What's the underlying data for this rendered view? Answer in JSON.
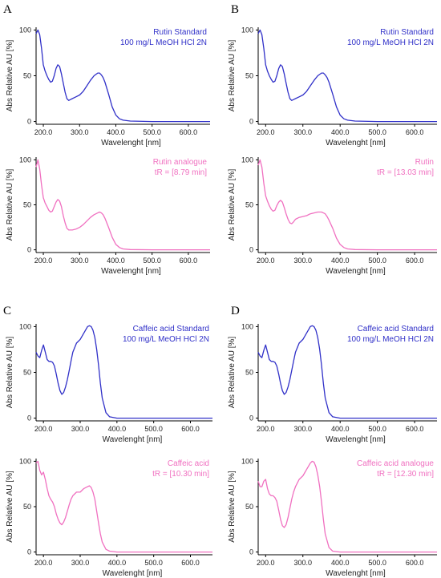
{
  "figure": {
    "panels": [
      "A",
      "B",
      "C",
      "D"
    ],
    "colors": {
      "standard": "#3030c8",
      "sample": "#f070c0",
      "axis": "#000000"
    }
  },
  "chart_data": [
    {
      "panel": "A",
      "type": "line",
      "legend": [
        "Rutin Standard",
        "100 mg/L MeOH HCl 2N"
      ],
      "xlabel": "Wavelenght [nm]",
      "ylabel": "Abs Relative AU [%]",
      "xlim": [
        180,
        660
      ],
      "ylim": [
        -3,
        103
      ],
      "xticks": [
        "200.0",
        "300.0",
        "400.0",
        "500.0",
        "600.0"
      ],
      "yticks": [
        "0",
        "50",
        "100"
      ],
      "grid": false,
      "series": [
        {
          "x": [
            180,
            185,
            190,
            195,
            200,
            205,
            210,
            215,
            220,
            225,
            230,
            235,
            240,
            245,
            250,
            255,
            260,
            265,
            270,
            275,
            280,
            290,
            300,
            310,
            320,
            330,
            340,
            350,
            355,
            360,
            365,
            370,
            380,
            390,
            400,
            410,
            420,
            440,
            500,
            600,
            660
          ],
          "y": [
            96,
            100,
            95,
            80,
            62,
            55,
            50,
            46,
            43,
            44,
            50,
            58,
            62,
            60,
            52,
            42,
            32,
            25,
            23,
            24,
            25,
            27,
            29,
            33,
            39,
            45,
            50,
            53,
            53,
            51,
            48,
            43,
            30,
            16,
            7,
            3,
            1.5,
            0.5,
            0,
            0,
            0
          ]
        }
      ]
    },
    {
      "panel": "B",
      "type": "line",
      "legend": [
        "Rutin Standard",
        "100 mg/L MeOH HCl 2N"
      ],
      "xlabel": "Wavelenght [nm]",
      "ylabel": "Abs Relative AU [%]",
      "xlim": [
        180,
        660
      ],
      "ylim": [
        -3,
        103
      ],
      "xticks": [
        "200.0",
        "300.0",
        "400.0",
        "500.0",
        "600.0"
      ],
      "yticks": [
        "0",
        "50",
        "100"
      ],
      "grid": false,
      "series": [
        {
          "x": [
            180,
            185,
            190,
            195,
            200,
            205,
            210,
            215,
            220,
            225,
            230,
            235,
            240,
            245,
            250,
            255,
            260,
            265,
            270,
            275,
            280,
            290,
            300,
            310,
            320,
            330,
            340,
            350,
            355,
            360,
            365,
            370,
            380,
            390,
            400,
            410,
            420,
            440,
            500,
            600,
            660
          ],
          "y": [
            96,
            100,
            95,
            80,
            62,
            55,
            50,
            46,
            43,
            44,
            50,
            58,
            62,
            60,
            52,
            42,
            32,
            25,
            23,
            24,
            25,
            27,
            29,
            33,
            39,
            45,
            50,
            53,
            53,
            51,
            48,
            43,
            30,
            16,
            7,
            3,
            1.5,
            0.5,
            0,
            0,
            0
          ]
        }
      ]
    },
    {
      "panel": "A",
      "type": "line",
      "legend": [
        "Rutin analogue",
        "tR = [8.79 min]"
      ],
      "xlabel": "Wavelenght [nm]",
      "ylabel": "Abs Relative AU [%]",
      "xlim": [
        180,
        660
      ],
      "ylim": [
        -3,
        103
      ],
      "xticks": [
        "200.0",
        "300.0",
        "400.0",
        "500.0",
        "600.0"
      ],
      "yticks": [
        "0",
        "50",
        "100"
      ],
      "grid": false,
      "series": [
        {
          "x": [
            180,
            185,
            190,
            195,
            200,
            205,
            210,
            215,
            220,
            225,
            230,
            235,
            240,
            245,
            250,
            255,
            260,
            265,
            270,
            275,
            280,
            290,
            300,
            310,
            320,
            330,
            340,
            350,
            355,
            360,
            365,
            370,
            380,
            390,
            400,
            410,
            420,
            440,
            500,
            600,
            660
          ],
          "y": [
            92,
            100,
            90,
            72,
            58,
            52,
            48,
            44,
            42,
            43,
            48,
            53,
            56,
            54,
            48,
            38,
            30,
            24,
            22,
            22,
            22,
            23,
            25,
            28,
            32,
            36,
            39,
            41,
            42,
            41,
            39,
            35,
            25,
            14,
            6,
            2.5,
            1,
            0.3,
            0,
            0,
            0
          ]
        }
      ]
    },
    {
      "panel": "B",
      "type": "line",
      "legend": [
        "Rutin",
        "tR = [13.03 min]"
      ],
      "xlabel": "Wavelenght [nm]",
      "ylabel": "Abs Relative AU [%]",
      "xlim": [
        180,
        660
      ],
      "ylim": [
        -3,
        103
      ],
      "xticks": [
        "200.0",
        "300.0",
        "400.0",
        "500.0",
        "600.0"
      ],
      "yticks": [
        "0",
        "50",
        "100"
      ],
      "grid": false,
      "series": [
        {
          "x": [
            180,
            185,
            190,
            195,
            200,
            205,
            210,
            215,
            220,
            225,
            230,
            235,
            240,
            245,
            250,
            255,
            260,
            265,
            270,
            275,
            280,
            290,
            300,
            310,
            320,
            330,
            340,
            350,
            355,
            360,
            365,
            370,
            380,
            390,
            400,
            410,
            420,
            440,
            500,
            600,
            660
          ],
          "y": [
            94,
            100,
            92,
            74,
            60,
            54,
            49,
            45,
            43,
            44,
            49,
            53,
            55,
            53,
            47,
            40,
            34,
            30,
            29,
            31,
            34,
            36,
            37,
            38,
            40,
            41,
            42,
            42,
            41,
            40,
            37,
            33,
            24,
            13,
            6,
            2.5,
            1,
            0.3,
            0,
            0,
            0
          ]
        }
      ]
    },
    {
      "panel": "C",
      "type": "line",
      "legend": [
        "Caffeic acid Standard",
        "100 mg/L MeOH HCl 2N"
      ],
      "xlabel": "Wavelenght [nm]",
      "ylabel": "Abs Relative AU [%]",
      "xlim": [
        180,
        660
      ],
      "ylim": [
        -3,
        103
      ],
      "xticks": [
        "200.0",
        "300.0",
        "400.0",
        "500.0",
        "600.0"
      ],
      "yticks": [
        "0",
        "50",
        "100"
      ],
      "grid": false,
      "series": [
        {
          "x": [
            180,
            185,
            190,
            195,
            200,
            205,
            210,
            215,
            220,
            225,
            230,
            235,
            240,
            245,
            250,
            255,
            260,
            265,
            270,
            275,
            280,
            290,
            300,
            310,
            320,
            325,
            330,
            335,
            340,
            345,
            350,
            355,
            360,
            370,
            380,
            400,
            500,
            600,
            660
          ],
          "y": [
            72,
            68,
            66,
            74,
            80,
            72,
            64,
            62,
            62,
            61,
            57,
            48,
            38,
            30,
            26,
            28,
            34,
            42,
            52,
            62,
            72,
            82,
            86,
            93,
            100,
            101,
            100,
            96,
            88,
            75,
            58,
            38,
            22,
            6,
            1.5,
            0,
            0,
            0,
            0
          ]
        }
      ]
    },
    {
      "panel": "D",
      "type": "line",
      "legend": [
        "Caffeic acid Standard",
        "100 mg/L MeOH HCl 2N"
      ],
      "xlabel": "Wavelenght [nm]",
      "ylabel": "Abs Relative AU [%]",
      "xlim": [
        180,
        660
      ],
      "ylim": [
        -3,
        103
      ],
      "xticks": [
        "200.0",
        "300.0",
        "400.0",
        "500.0",
        "600.0"
      ],
      "yticks": [
        "0",
        "50",
        "100"
      ],
      "grid": false,
      "series": [
        {
          "x": [
            180,
            185,
            190,
            195,
            200,
            205,
            210,
            215,
            220,
            225,
            230,
            235,
            240,
            245,
            250,
            255,
            260,
            265,
            270,
            275,
            280,
            290,
            300,
            310,
            320,
            325,
            330,
            335,
            340,
            345,
            350,
            355,
            360,
            370,
            380,
            400,
            500,
            600,
            660
          ],
          "y": [
            72,
            68,
            66,
            74,
            80,
            72,
            64,
            62,
            62,
            61,
            57,
            48,
            38,
            30,
            26,
            28,
            34,
            42,
            52,
            62,
            72,
            82,
            86,
            93,
            100,
            101,
            100,
            96,
            88,
            75,
            58,
            38,
            22,
            6,
            1.5,
            0,
            0,
            0,
            0
          ]
        }
      ]
    },
    {
      "panel": "C",
      "type": "line",
      "legend": [
        "Caffeic acid",
        "tR = [10.30 min]"
      ],
      "xlabel": "Wavelenght [nm]",
      "ylabel": "Abs Relative AU [%]",
      "xlim": [
        180,
        660
      ],
      "ylim": [
        -3,
        103
      ],
      "xticks": [
        "200.0",
        "300.0",
        "400.0",
        "500.0",
        "600.0"
      ],
      "yticks": [
        "0",
        "50",
        "100"
      ],
      "grid": false,
      "series": [
        {
          "x": [
            180,
            185,
            190,
            195,
            200,
            205,
            210,
            215,
            220,
            225,
            230,
            235,
            240,
            245,
            250,
            255,
            260,
            265,
            270,
            275,
            280,
            290,
            300,
            310,
            320,
            325,
            330,
            335,
            340,
            345,
            350,
            355,
            360,
            370,
            380,
            400,
            500,
            600,
            660
          ],
          "y": [
            98,
            100,
            90,
            85,
            88,
            80,
            70,
            62,
            58,
            55,
            50,
            42,
            36,
            32,
            30,
            33,
            38,
            45,
            52,
            58,
            62,
            66,
            66,
            70,
            72,
            73,
            71,
            66,
            58,
            45,
            32,
            20,
            11,
            3,
            1,
            0,
            0,
            0,
            0
          ]
        }
      ]
    },
    {
      "panel": "D",
      "type": "line",
      "legend": [
        "Caffeic acid analogue",
        "tR = [12.30 min]"
      ],
      "xlabel": "Wavelenght [nm]",
      "ylabel": "Abs Relative AU [%]",
      "xlim": [
        180,
        660
      ],
      "ylim": [
        -3,
        103
      ],
      "xticks": [
        "200.0",
        "300.0",
        "400.0",
        "500.0",
        "600.0"
      ],
      "yticks": [
        "0",
        "50",
        "100"
      ],
      "grid": false,
      "series": [
        {
          "x": [
            180,
            185,
            190,
            195,
            200,
            205,
            210,
            215,
            220,
            225,
            230,
            235,
            240,
            245,
            250,
            255,
            260,
            265,
            270,
            275,
            280,
            290,
            300,
            310,
            320,
            325,
            330,
            335,
            340,
            345,
            350,
            355,
            360,
            370,
            380,
            400,
            500,
            600,
            660
          ],
          "y": [
            78,
            72,
            72,
            78,
            80,
            70,
            64,
            62,
            62,
            60,
            56,
            46,
            36,
            29,
            27,
            30,
            38,
            48,
            58,
            66,
            72,
            80,
            84,
            91,
            98,
            100,
            99,
            94,
            85,
            72,
            55,
            36,
            20,
            5,
            1,
            0,
            0,
            0,
            0
          ]
        }
      ]
    }
  ]
}
